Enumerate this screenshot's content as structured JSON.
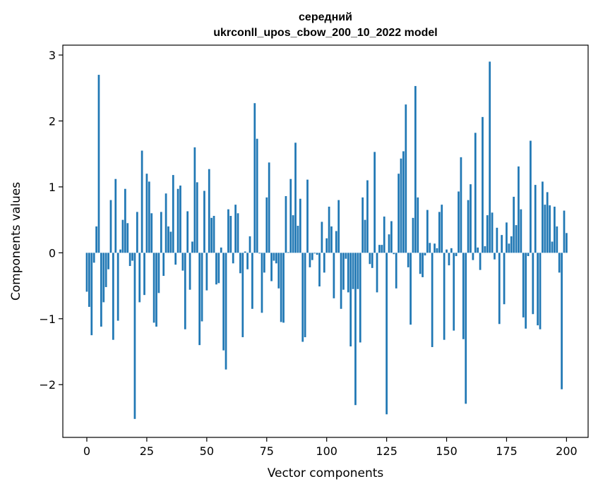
{
  "chart_data": {
    "type": "bar",
    "title_line1": "середний",
    "title_line2": "ukrconll_upos_cbow_200_10_2022 model",
    "xlabel": "Vector components",
    "ylabel": "Components values",
    "xlim": [
      -10,
      209
    ],
    "ylim": [
      -2.8,
      3.15
    ],
    "x_ticks": [
      0,
      25,
      50,
      75,
      100,
      125,
      150,
      175,
      200
    ],
    "x_tick_labels": [
      "0",
      "25",
      "50",
      "75",
      "100",
      "125",
      "150",
      "175",
      "200"
    ],
    "y_ticks": [
      -2,
      -1,
      0,
      1,
      2,
      3
    ],
    "y_tick_labels": [
      "−2",
      "−1",
      "0",
      "1",
      "2",
      "3"
    ],
    "bar_color": "#1f77b4",
    "grid": false,
    "legend": "none",
    "values": [
      -0.59,
      -0.82,
      -1.25,
      -0.15,
      0.4,
      2.7,
      -1.12,
      -0.75,
      -0.52,
      -0.25,
      0.8,
      -1.32,
      1.12,
      -1.03,
      0.05,
      0.5,
      0.97,
      0.45,
      -0.2,
      -0.12,
      -2.52,
      0.62,
      -0.75,
      1.55,
      -0.64,
      1.2,
      1.08,
      0.6,
      -1.06,
      -1.12,
      -0.61,
      0.62,
      -0.35,
      0.9,
      0.4,
      0.32,
      1.18,
      -0.18,
      0.97,
      1.02,
      -0.27,
      -1.16,
      0.63,
      -0.56,
      0.17,
      1.6,
      1.07,
      -1.4,
      -1.04,
      0.94,
      -0.57,
      1.27,
      0.53,
      0.56,
      -0.48,
      -0.46,
      0.08,
      -1.48,
      -1.77,
      0.66,
      0.56,
      -0.16,
      0.73,
      0.6,
      -0.31,
      -1.28,
      0.02,
      -0.25,
      0.25,
      -0.85,
      2.27,
      1.73,
      -0.01,
      -0.91,
      -0.3,
      0.84,
      1.37,
      -0.43,
      -0.12,
      -0.16,
      -0.54,
      -1.05,
      -1.06,
      0.86,
      0.01,
      1.12,
      0.57,
      1.67,
      0.41,
      0.82,
      -1.35,
      -1.28,
      1.11,
      -0.22,
      -0.11,
      -0.01,
      -0.03,
      -0.51,
      0.47,
      -0.3,
      0.22,
      0.7,
      0.4,
      -0.69,
      0.33,
      0.8,
      -0.85,
      -0.56,
      -0.09,
      -0.6,
      -1.42,
      -0.55,
      -2.31,
      -0.55,
      -1.36,
      0.84,
      0.5,
      1.1,
      -0.17,
      -0.23,
      1.53,
      -0.6,
      0.12,
      0.12,
      0.55,
      -2.45,
      0.28,
      0.48,
      -0.02,
      -0.54,
      1.2,
      1.43,
      1.54,
      2.25,
      -0.22,
      -1.09,
      0.53,
      2.53,
      0.84,
      -0.32,
      -0.37,
      -0.04,
      0.65,
      0.15,
      -1.43,
      0.14,
      0.07,
      0.62,
      0.73,
      -1.32,
      0.05,
      -0.19,
      0.07,
      -1.18,
      -0.05,
      0.93,
      1.45,
      -1.31,
      -2.29,
      0.8,
      1.04,
      -0.11,
      1.82,
      0.08,
      -0.26,
      2.06,
      0.1,
      0.57,
      2.9,
      0.61,
      -0.1,
      0.38,
      -1.08,
      0.27,
      -0.78,
      0.46,
      0.14,
      0.25,
      0.85,
      0.42,
      1.31,
      0.66,
      -0.98,
      -1.15,
      -0.05,
      1.7,
      -0.93,
      1.03,
      -1.1,
      -1.16,
      1.08,
      0.73,
      0.92,
      0.72,
      0.17,
      0.7,
      0.4,
      -0.3,
      -2.07,
      0.64,
      0.3
    ]
  }
}
